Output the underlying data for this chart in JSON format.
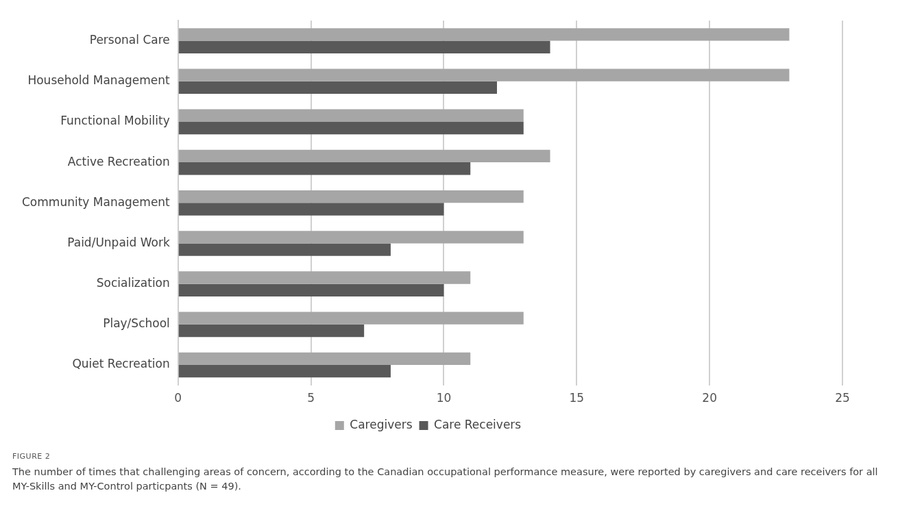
{
  "chart_data": {
    "type": "bar",
    "orientation": "horizontal",
    "categories": [
      "Personal Care",
      "Household Management",
      "Functional Mobility",
      "Active Recreation",
      "Community Management",
      "Paid/Unpaid Work",
      "Socialization",
      "Play/School",
      "Quiet Recreation"
    ],
    "series": [
      {
        "name": "Caregivers",
        "color": "#a6a6a6",
        "values": [
          23,
          23,
          13,
          14,
          13,
          13,
          11,
          13,
          11
        ]
      },
      {
        "name": "Care Receivers",
        "color": "#595959",
        "values": [
          14,
          12,
          13,
          11,
          10,
          8,
          10,
          7,
          8
        ]
      }
    ],
    "xlim": [
      0,
      25
    ],
    "xticks": [
      0,
      5,
      10,
      15,
      20,
      25
    ],
    "grid": "x",
    "legend": "bottom",
    "annotations": [
      "FIGURE 2",
      "The number of times that challenging areas of concern, according to the Canadian occupational performance measure, were reported by caregivers and care receivers for all MY-Skills and MY-Control particpants (N = 49)."
    ]
  }
}
